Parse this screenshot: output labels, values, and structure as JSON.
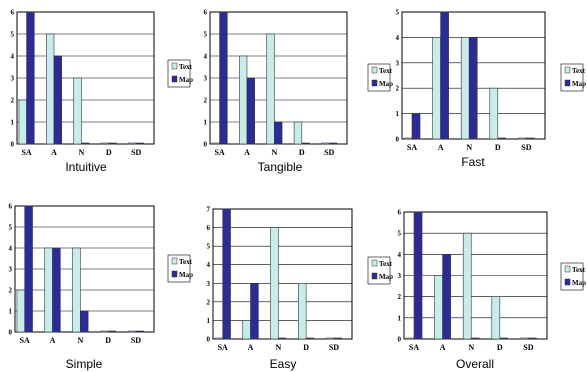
{
  "colors": {
    "text": "#c6ecec",
    "map": "#2b2b9a",
    "grid": "#000000"
  },
  "chart_data": [
    {
      "type": "bar",
      "title": "Intuitive",
      "categories": [
        "SA",
        "A",
        "N",
        "D",
        "SD"
      ],
      "ylim": [
        0,
        6
      ],
      "yticks": [
        "0",
        "1",
        "2",
        "3",
        "4",
        "5",
        "6"
      ],
      "series": [
        {
          "name": "Text",
          "values": [
            2,
            5,
            3,
            0,
            0
          ]
        },
        {
          "name": "Map",
          "values": [
            6,
            4,
            0,
            0,
            0
          ]
        }
      ]
    },
    {
      "type": "bar",
      "title": "Tangible",
      "categories": [
        "SA",
        "A",
        "N",
        "D",
        "SD"
      ],
      "ylim": [
        0,
        6
      ],
      "yticks": [
        "0",
        "1",
        "2",
        "3",
        "4",
        "5",
        "6"
      ],
      "series": [
        {
          "name": "Text",
          "values": [
            0,
            4,
            5,
            1,
            0
          ]
        },
        {
          "name": "Map",
          "values": [
            6,
            3,
            1,
            0,
            0
          ]
        }
      ]
    },
    {
      "type": "bar",
      "title": "Fast",
      "categories": [
        "SA",
        "A",
        "N",
        "D",
        "SD"
      ],
      "ylim": [
        0,
        5
      ],
      "yticks": [
        "0",
        "1",
        "2",
        "3",
        "4",
        "5"
      ],
      "series": [
        {
          "name": "Text",
          "values": [
            0,
            4,
            4,
            2,
            0
          ]
        },
        {
          "name": "Map",
          "values": [
            1,
            5,
            4,
            0,
            0
          ]
        }
      ]
    },
    {
      "type": "bar",
      "title": "Simple",
      "categories": [
        "SA",
        "A",
        "N",
        "D",
        "SD"
      ],
      "ylim": [
        0,
        6
      ],
      "yticks": [
        "0",
        "1",
        "2",
        "3",
        "4",
        "5",
        "6"
      ],
      "series": [
        {
          "name": "Text",
          "values": [
            2,
            4,
            4,
            0,
            0
          ]
        },
        {
          "name": "Map",
          "values": [
            6,
            4,
            1,
            0,
            0
          ]
        }
      ]
    },
    {
      "type": "bar",
      "title": "Easy",
      "categories": [
        "SA",
        "A",
        "N",
        "D",
        "SD"
      ],
      "ylim": [
        0,
        7
      ],
      "yticks": [
        "0",
        "1",
        "2",
        "3",
        "4",
        "5",
        "6",
        "7"
      ],
      "series": [
        {
          "name": "Text",
          "values": [
            0,
            1,
            6,
            3,
            0
          ]
        },
        {
          "name": "Map",
          "values": [
            7,
            3,
            0,
            0,
            0
          ]
        }
      ]
    },
    {
      "type": "bar",
      "title": "Overall",
      "categories": [
        "SA",
        "A",
        "N",
        "D",
        "SD"
      ],
      "ylim": [
        0,
        6
      ],
      "yticks": [
        "0",
        "1",
        "2",
        "3",
        "4",
        "5",
        "6"
      ],
      "series": [
        {
          "name": "Text",
          "values": [
            0,
            3,
            5,
            2,
            0
          ]
        },
        {
          "name": "Map",
          "values": [
            6,
            4,
            0,
            0,
            0
          ]
        }
      ]
    }
  ]
}
